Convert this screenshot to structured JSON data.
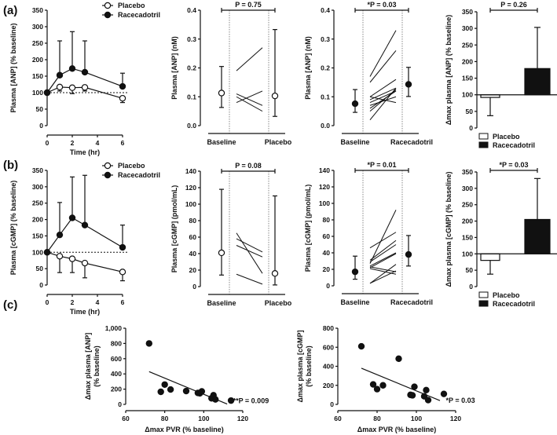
{
  "colors": {
    "ink": "#111111",
    "open_fill": "#ffffff",
    "dotted": "#888888"
  },
  "panel_labels": [
    "(a)",
    "(b)",
    "(c)"
  ],
  "chart_data": [
    {
      "id": "a1",
      "type": "line",
      "ylabel": "Plasma [ANP] (% baseline)",
      "xlabel": "Time (hr)",
      "xlim": [
        0,
        6
      ],
      "ylim": [
        0,
        350
      ],
      "xticks": [
        0,
        2,
        4,
        6
      ],
      "yticks": [
        0,
        50,
        100,
        150,
        200,
        250,
        300,
        350
      ],
      "reference_line": 100,
      "legend": [
        "Placebo",
        "Racecadotril"
      ],
      "series": [
        {
          "name": "Placebo",
          "marker": "open",
          "x": [
            0,
            1,
            2,
            3,
            6
          ],
          "y": [
            100,
            117,
            115,
            116,
            83
          ],
          "err": [
            100,
            105,
            97,
            105,
            70
          ]
        },
        {
          "name": "Racecadotril",
          "marker": "filled",
          "x": [
            0,
            1,
            2,
            3,
            6
          ],
          "y": [
            100,
            153,
            173,
            162,
            119
          ],
          "err": [
            100,
            257,
            285,
            257,
            159
          ]
        }
      ]
    },
    {
      "id": "a2",
      "type": "paired",
      "ylabel": "Plasma [ANP] (nM)",
      "ylim": [
        0,
        0.4
      ],
      "yticks": [
        "0.0",
        "0.1",
        "0.2",
        "0.3",
        "0.4"
      ],
      "categories": [
        "Baseline",
        "Placebo"
      ],
      "annotation": "P = 0.75",
      "marker": "open",
      "means": [
        0.113,
        0.103
      ],
      "ci": [
        [
          0.063,
          0.205
        ],
        [
          0.032,
          0.333
        ]
      ],
      "pairs": [
        [
          0.19,
          0.27
        ],
        [
          0.11,
          0.07
        ],
        [
          0.1,
          0.05
        ],
        [
          0.08,
          0.12
        ]
      ]
    },
    {
      "id": "a3",
      "type": "paired",
      "ylabel": "Plasma [ANP] (nM)",
      "ylim": [
        0,
        0.4
      ],
      "yticks": [
        "0.0",
        "0.1",
        "0.2",
        "0.3",
        "0.4"
      ],
      "categories": [
        "Baseline",
        "Racecadotril"
      ],
      "annotation": "*P = 0.03",
      "marker": "filled",
      "means": [
        0.076,
        0.143
      ],
      "ci": [
        [
          0.046,
          0.125
        ],
        [
          0.101,
          0.202
        ]
      ],
      "pairs": [
        [
          0.17,
          0.33
        ],
        [
          0.15,
          0.26
        ],
        [
          0.1,
          0.16
        ],
        [
          0.1,
          0.08
        ],
        [
          0.09,
          0.13
        ],
        [
          0.08,
          0.12
        ],
        [
          0.07,
          0.1
        ],
        [
          0.06,
          0.12
        ],
        [
          0.05,
          0.125
        ],
        [
          0.02,
          0.13
        ]
      ]
    },
    {
      "id": "a4",
      "type": "bar",
      "ylabel": "Δmax plasma [ANP] (% baseline)",
      "ylim": [
        0,
        350
      ],
      "yticks": [
        0,
        50,
        100,
        150,
        200,
        250,
        300,
        350
      ],
      "baseline": 100,
      "annotation": "P = 0.26",
      "categories": [
        "Placebo",
        "Racecadotril"
      ],
      "values": [
        92,
        179
      ],
      "err": [
        37,
        303
      ]
    },
    {
      "id": "b1",
      "type": "line",
      "ylabel": "Plasma [cGMP] (% baseline)",
      "xlabel": "Time (hr)",
      "xlim": [
        0,
        6
      ],
      "ylim": [
        0,
        350
      ],
      "xticks": [
        0,
        2,
        4,
        6
      ],
      "yticks": [
        0,
        50,
        100,
        150,
        200,
        250,
        300,
        350
      ],
      "reference_line": 100,
      "legend": [
        "Placebo",
        "Racecadotril"
      ],
      "series": [
        {
          "name": "Placebo",
          "marker": "open",
          "x": [
            0,
            1,
            2,
            3,
            6
          ],
          "y": [
            100,
            88,
            80,
            67,
            40
          ],
          "err": [
            100,
            38,
            38,
            22,
            13
          ]
        },
        {
          "name": "Racecadotril",
          "marker": "filled",
          "x": [
            0,
            1,
            2,
            3,
            6
          ],
          "y": [
            100,
            153,
            205,
            183,
            115
          ],
          "err": [
            100,
            252,
            330,
            335,
            183
          ]
        }
      ]
    },
    {
      "id": "b2",
      "type": "paired",
      "ylabel": "Plasma [cGMP] (pmol/mL)",
      "ylim": [
        0,
        140
      ],
      "yticks": [
        "0",
        "20",
        "40",
        "60",
        "80",
        "100",
        "120",
        "140"
      ],
      "categories": [
        "Baseline",
        "Placebo"
      ],
      "annotation": "P = 0.08",
      "marker": "open",
      "means": [
        41,
        16
      ],
      "ci": [
        [
          14,
          118
        ],
        [
          2,
          110
        ]
      ],
      "pairs": [
        [
          58,
          42
        ],
        [
          50,
          36
        ],
        [
          65,
          16
        ],
        [
          15,
          3
        ]
      ]
    },
    {
      "id": "b3",
      "type": "paired",
      "ylabel": "Plasma [cGMP] (pmol/mL)",
      "ylim": [
        0,
        140
      ],
      "yticks": [
        "0",
        "20",
        "40",
        "60",
        "80",
        "100",
        "120",
        "140"
      ],
      "categories": [
        "Baseline",
        "Racecadotril"
      ],
      "annotation": "*P = 0.01",
      "marker": "filled",
      "means": [
        17,
        38
      ],
      "ci": [
        [
          8,
          36
        ],
        [
          24,
          61
        ]
      ],
      "pairs": [
        [
          46,
          65
        ],
        [
          31,
          55
        ],
        [
          29,
          50
        ],
        [
          27,
          92
        ],
        [
          24,
          40
        ],
        [
          22,
          39
        ],
        [
          23,
          17
        ],
        [
          21,
          14
        ],
        [
          3,
          26
        ],
        [
          3,
          18
        ]
      ]
    },
    {
      "id": "b4",
      "type": "bar",
      "ylabel": "Δmax plasma [cGMP] (% baseline)",
      "ylim": [
        0,
        350
      ],
      "yticks": [
        0,
        50,
        100,
        150,
        200,
        250,
        300,
        350
      ],
      "baseline": 100,
      "annotation": "*P = 0.03",
      "categories": [
        "Placebo",
        "Racecadotril"
      ],
      "values": [
        80,
        205
      ],
      "err": [
        38,
        330
      ]
    },
    {
      "id": "c1",
      "type": "scatter",
      "ylabel": [
        "Δmax plasma [ANP]",
        "(% baseline)"
      ],
      "xlabel": "Δmax PVR (% baseline)",
      "xlim": [
        60,
        120
      ],
      "ylim": [
        0,
        1000
      ],
      "xticks": [
        60,
        80,
        100,
        120
      ],
      "yticks": [
        "0",
        "200",
        "400",
        "600",
        "800",
        "1,000"
      ],
      "annotation": "**P = 0.009",
      "x": [
        72,
        78,
        80,
        83,
        91,
        97,
        98,
        99,
        104,
        105,
        106,
        114
      ],
      "y": [
        800,
        165,
        260,
        195,
        175,
        150,
        145,
        170,
        80,
        120,
        65,
        50
      ],
      "fit": [
        [
          72,
          430
        ],
        [
          112,
          5
        ]
      ]
    },
    {
      "id": "c2",
      "type": "scatter",
      "ylabel": [
        "Δmax plasma [cGMP]",
        "(% baseline)"
      ],
      "xlabel": "Δmax PVR (% baseline)",
      "xlim": [
        60,
        120
      ],
      "ylim": [
        0,
        800
      ],
      "xticks": [
        60,
        80,
        100,
        120
      ],
      "yticks": [
        "0",
        "200",
        "400",
        "600",
        "800"
      ],
      "annotation": "*P = 0.03",
      "x": [
        72,
        78,
        80,
        83,
        91,
        97,
        98,
        99,
        104,
        105,
        106,
        114
      ],
      "y": [
        610,
        210,
        160,
        200,
        480,
        100,
        95,
        185,
        85,
        150,
        45,
        110
      ],
      "fit": [
        [
          72,
          380
        ],
        [
          112,
          40
        ]
      ]
    }
  ]
}
